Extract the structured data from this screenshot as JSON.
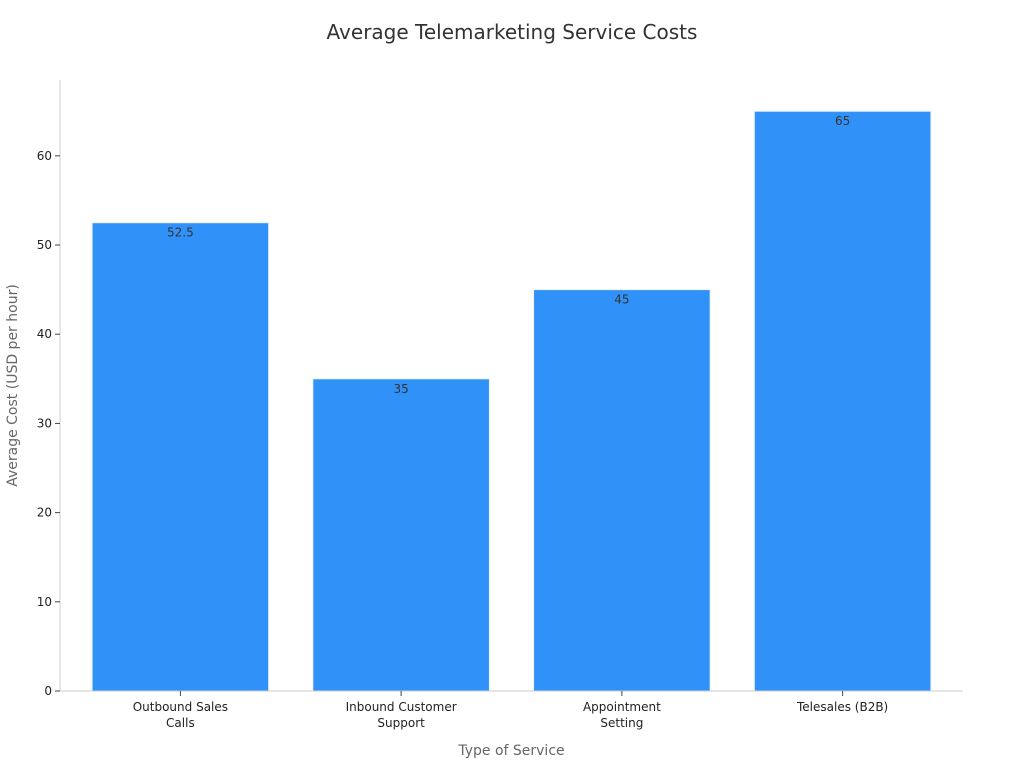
{
  "chart_data": {
    "type": "bar",
    "title": "Average Telemarketing Service Costs",
    "xlabel": "Type of Service",
    "ylabel": "Average Cost (USD per hour)",
    "categories": [
      [
        "Outbound Sales",
        "Calls"
      ],
      [
        "Inbound Customer",
        "Support"
      ],
      [
        "Appointment",
        "Setting"
      ],
      [
        "Telesales (B2B)"
      ]
    ],
    "values": [
      52.5,
      35,
      45,
      65
    ],
    "data_labels": [
      "52.5",
      "35",
      "45",
      "65"
    ],
    "ylim": [
      0,
      68.5
    ],
    "yticks": [
      0,
      10,
      20,
      30,
      40,
      50,
      60
    ],
    "grid": false,
    "bar_color": "#3092f8"
  }
}
